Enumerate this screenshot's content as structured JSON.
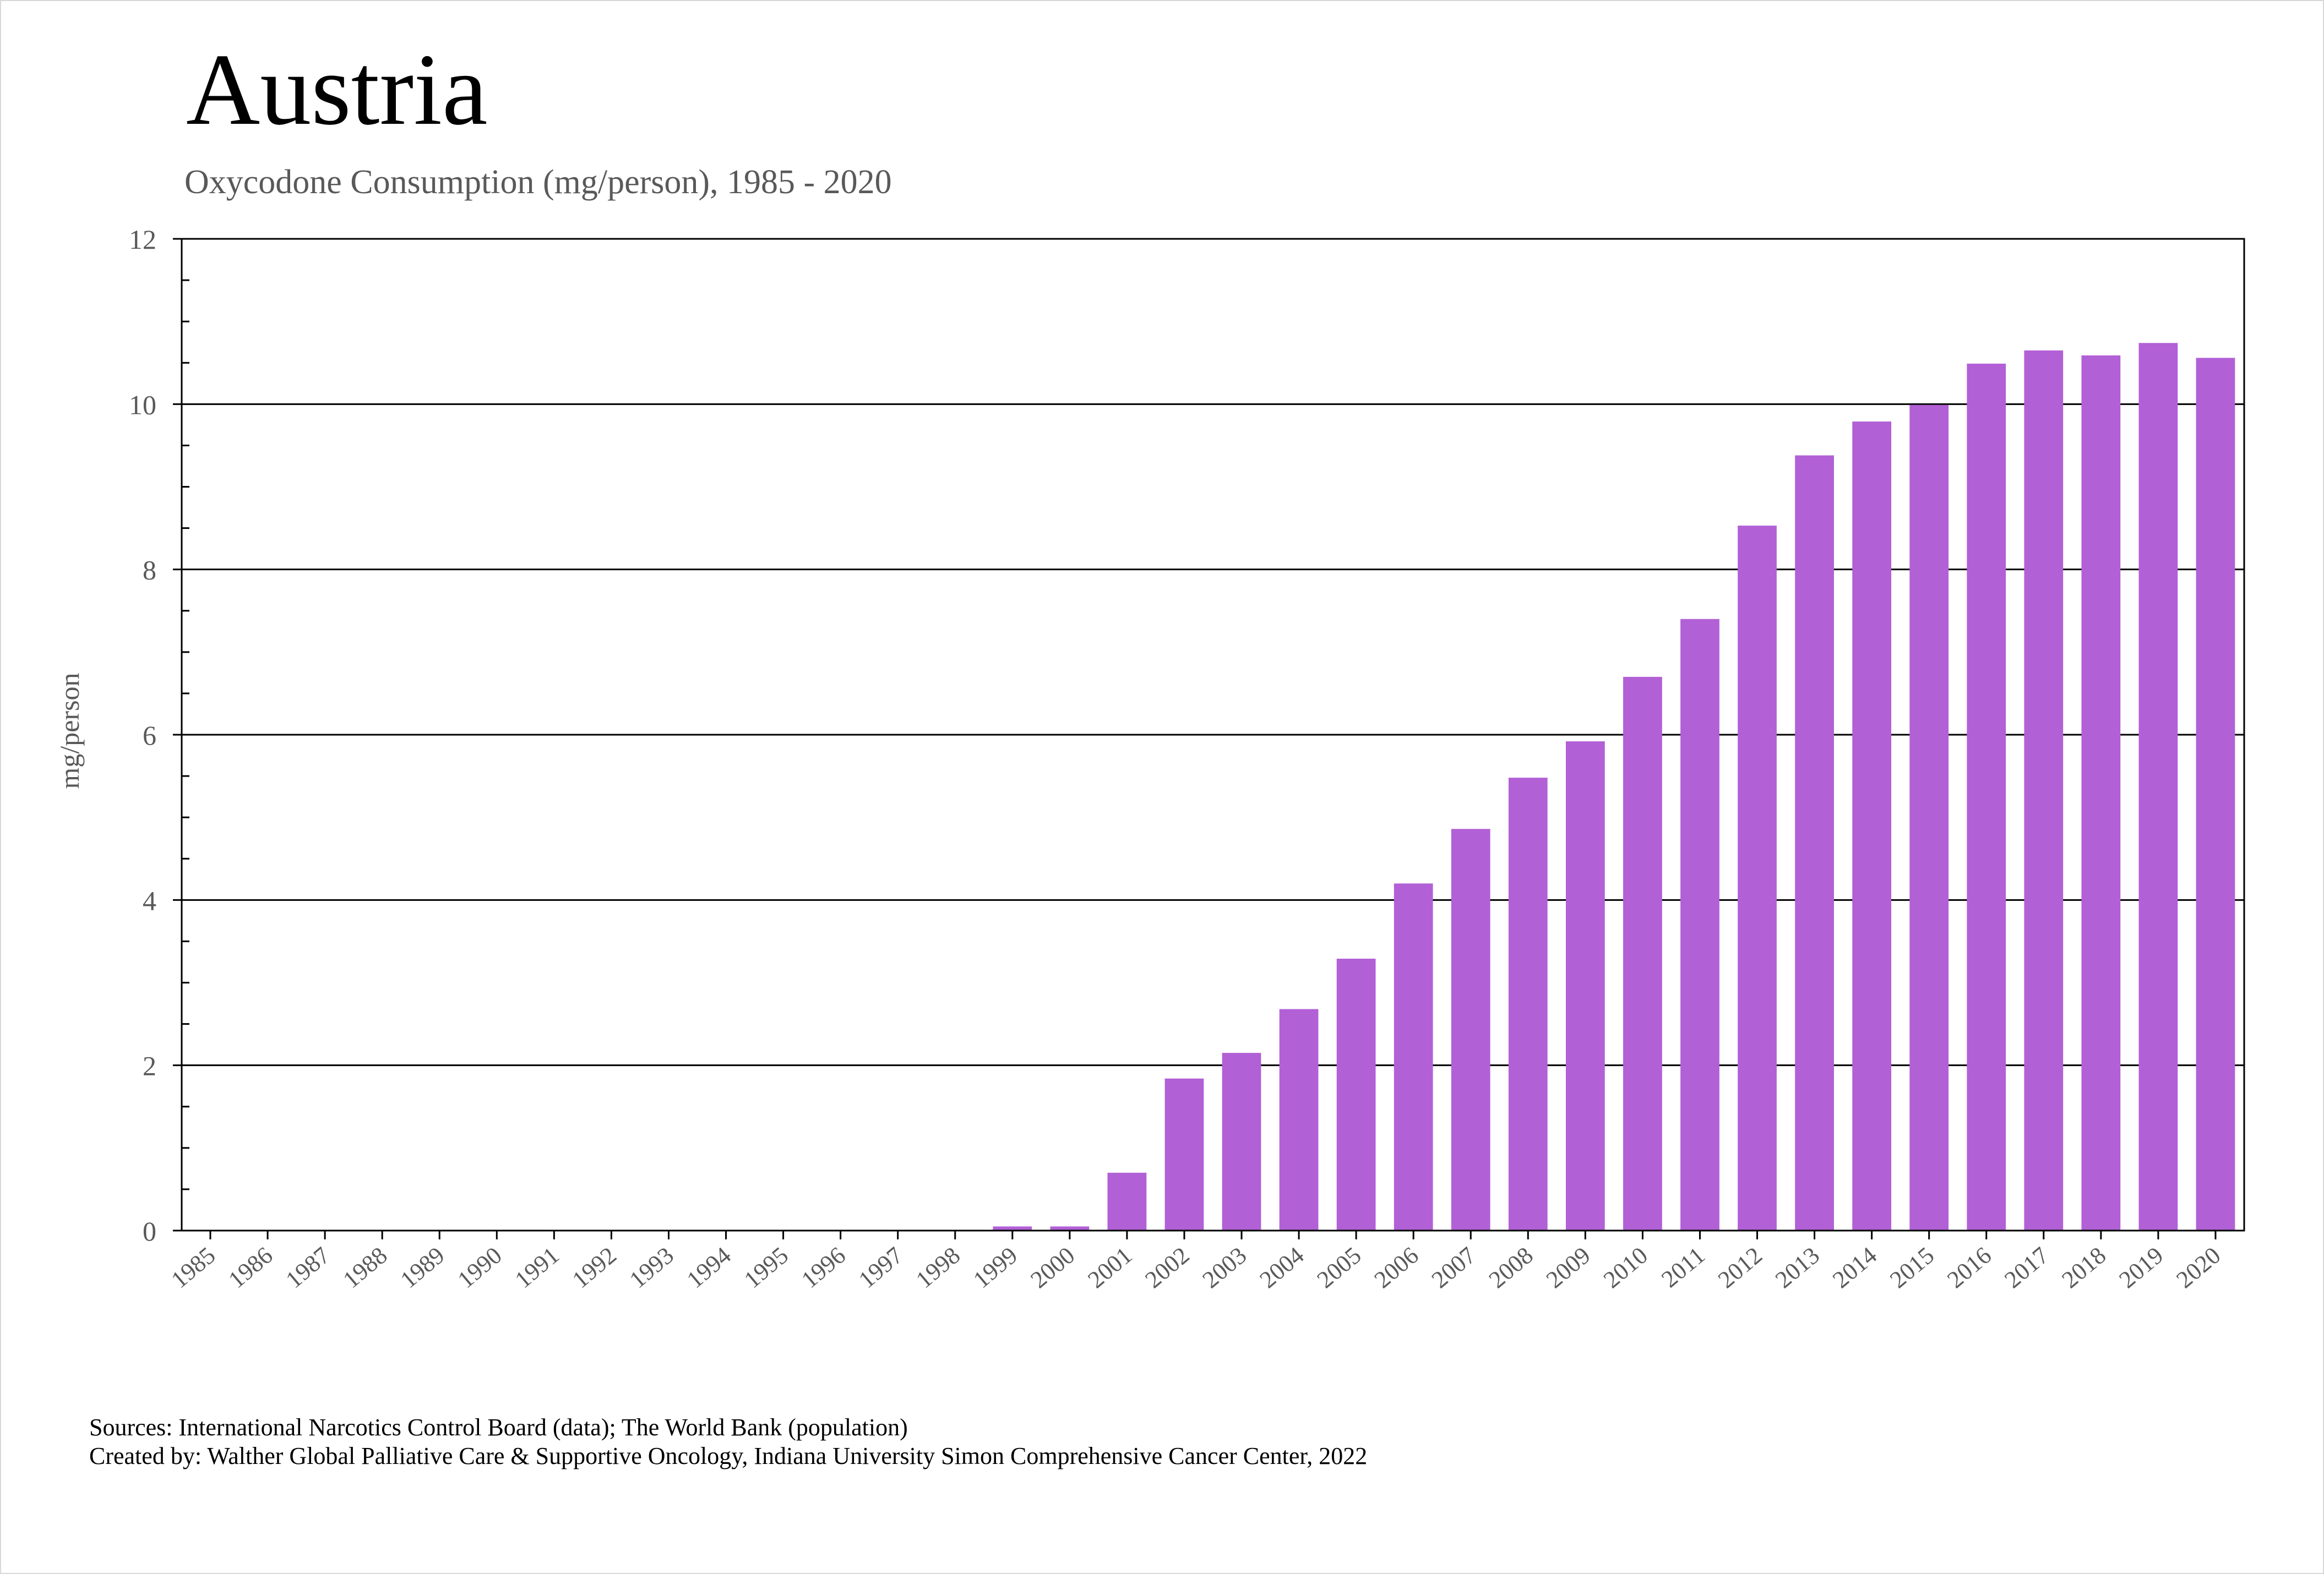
{
  "page": {
    "title": "Austria",
    "subtitle": "Oxycodone Consumption (mg/person), 1985 - 2020",
    "source_line": "Sources: International Narcotics Control Board (data); The World Bank (population)",
    "created_line": "Created by: Walther Global Palliative Care & Supportive Oncology, Indiana University Simon Comprehensive Cancer Center, 2022"
  },
  "colors": {
    "bar": "#b260d6",
    "axis": "#000000",
    "label": "#595959"
  },
  "chart_data": {
    "type": "bar",
    "title": "Austria",
    "subtitle": "Oxycodone Consumption (mg/person), 1985 - 2020",
    "xlabel": "",
    "ylabel": "mg/person",
    "ylim": [
      0,
      12
    ],
    "yticks": [
      0,
      2,
      4,
      6,
      8,
      10,
      12
    ],
    "grid": true,
    "legend": "none",
    "categories": [
      "1985",
      "1986",
      "1987",
      "1988",
      "1989",
      "1990",
      "1991",
      "1992",
      "1993",
      "1994",
      "1995",
      "1996",
      "1997",
      "1998",
      "1999",
      "2000",
      "2001",
      "2002",
      "2003",
      "2004",
      "2005",
      "2006",
      "2007",
      "2008",
      "2009",
      "2010",
      "2011",
      "2012",
      "2013",
      "2014",
      "2015",
      "2016",
      "2017",
      "2018",
      "2019",
      "2020"
    ],
    "values": [
      0,
      0,
      0,
      0,
      0,
      0,
      0,
      0,
      0,
      0,
      0,
      0,
      0,
      0,
      0.05,
      0.05,
      0.7,
      1.84,
      2.15,
      2.68,
      3.29,
      4.2,
      4.86,
      5.48,
      5.92,
      6.7,
      7.4,
      8.53,
      9.38,
      9.79,
      9.99,
      10.49,
      10.65,
      10.59,
      10.74,
      10.56
    ]
  }
}
